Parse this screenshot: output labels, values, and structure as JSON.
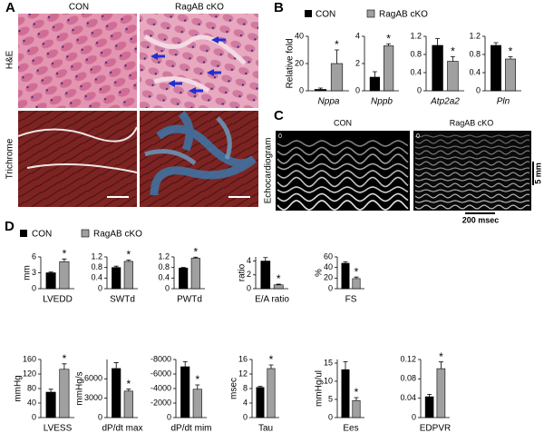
{
  "panel_labels": [
    "A",
    "B",
    "C",
    "D"
  ],
  "panel_a": {
    "columns": [
      "CON",
      "RagAB cKO"
    ],
    "rows": [
      "H&E",
      "Trichrome"
    ]
  },
  "panel_b": {
    "legend": [
      "CON",
      "RagAB cKO"
    ]
  },
  "panel_c": {
    "columns": [
      "CON",
      "RagAB cKO"
    ],
    "ylabel": "Echocardiogram",
    "scale_y": "5 mm",
    "scale_x": "200 msec",
    "image_ticks": [
      "0",
      "0"
    ]
  },
  "panel_d": {
    "legend": [
      "CON",
      "RagAB cKO"
    ]
  },
  "chart_data": [
    {
      "type": "bar",
      "ylabel": "Relative fold",
      "categories": [
        "Nppa"
      ],
      "italic": true,
      "star": "*",
      "ylim": [
        0,
        40
      ],
      "yticks": [
        0,
        20,
        40
      ],
      "series": [
        {
          "color": "#000000",
          "values": [
            1
          ],
          "errors": [
            1
          ]
        },
        {
          "color": "#a0a0a0",
          "values": [
            20
          ],
          "errors": [
            10
          ]
        }
      ]
    },
    {
      "type": "bar",
      "categories": [
        "Nppb"
      ],
      "italic": true,
      "star": "*",
      "ylim": [
        0,
        4
      ],
      "yticks": [
        0,
        2,
        4
      ],
      "series": [
        {
          "color": "#000000",
          "values": [
            1
          ],
          "errors": [
            0.4
          ]
        },
        {
          "color": "#a0a0a0",
          "values": [
            3.3
          ],
          "errors": [
            0.15
          ]
        }
      ]
    },
    {
      "type": "bar",
      "categories": [
        "Atp2a2"
      ],
      "italic": true,
      "star": "*",
      "ylim": [
        0,
        1.2
      ],
      "yticks": [
        0,
        0.4,
        0.8,
        1.2
      ],
      "series": [
        {
          "color": "#000000",
          "values": [
            1.0
          ],
          "errors": [
            0.15
          ]
        },
        {
          "color": "#a0a0a0",
          "values": [
            0.65
          ],
          "errors": [
            0.1
          ]
        }
      ]
    },
    {
      "type": "bar",
      "categories": [
        "Pln"
      ],
      "italic": true,
      "star": "*",
      "ylim": [
        0,
        1.2
      ],
      "yticks": [
        0,
        0.4,
        0.8,
        1.2
      ],
      "series": [
        {
          "color": "#000000",
          "values": [
            1.0
          ],
          "errors": [
            0.06
          ]
        },
        {
          "color": "#a0a0a0",
          "values": [
            0.7
          ],
          "errors": [
            0.05
          ]
        }
      ]
    },
    {
      "type": "bar",
      "ylabel": "mm",
      "categories": [
        "LVEDD"
      ],
      "star": "*",
      "ylim": [
        0,
        6
      ],
      "yticks": [
        0,
        3,
        6
      ],
      "series": [
        {
          "color": "#000000",
          "values": [
            3.0
          ],
          "errors": [
            0.15
          ]
        },
        {
          "color": "#a0a0a0",
          "values": [
            5.1
          ],
          "errors": [
            0.5
          ]
        }
      ]
    },
    {
      "type": "bar",
      "categories": [
        "SWTd"
      ],
      "star": "*",
      "ylim": [
        0,
        1.2
      ],
      "yticks": [
        0,
        0.4,
        0.8,
        1.2
      ],
      "series": [
        {
          "color": "#000000",
          "values": [
            0.8
          ],
          "errors": [
            0.05
          ]
        },
        {
          "color": "#a0a0a0",
          "values": [
            1.03
          ],
          "errors": [
            0.05
          ]
        }
      ]
    },
    {
      "type": "bar",
      "categories": [
        "PWTd"
      ],
      "star": "*",
      "ylim": [
        0,
        1.2
      ],
      "yticks": [
        0,
        0.4,
        0.8,
        1.2
      ],
      "series": [
        {
          "color": "#000000",
          "values": [
            0.78
          ],
          "errors": [
            0.02
          ]
        },
        {
          "color": "#a0a0a0",
          "values": [
            1.15
          ],
          "errors": [
            0.04
          ]
        }
      ]
    },
    {
      "type": "bar",
      "ylabel": "ratio",
      "categories": [
        "E/A ratio"
      ],
      "star": "*",
      "ylim": [
        0,
        4.6
      ],
      "yticks": [
        0,
        2,
        4
      ],
      "series": [
        {
          "color": "#000000",
          "values": [
            4.0
          ],
          "errors": [
            0.5
          ]
        },
        {
          "color": "#a0a0a0",
          "values": [
            0.55
          ],
          "errors": [
            0.1
          ]
        }
      ]
    },
    {
      "type": "bar",
      "ylabel": "%",
      "categories": [
        "FS"
      ],
      "star": "*",
      "ylim": [
        0,
        60
      ],
      "yticks": [
        0,
        20,
        40,
        60
      ],
      "series": [
        {
          "color": "#000000",
          "values": [
            48
          ],
          "errors": [
            3
          ]
        },
        {
          "color": "#a0a0a0",
          "values": [
            19
          ],
          "errors": [
            3
          ]
        }
      ]
    },
    {
      "type": "bar",
      "ylabel": "mmHg",
      "categories": [
        "LVESS"
      ],
      "star": "*",
      "ylim": [
        0,
        160
      ],
      "yticks": [
        0,
        40,
        80,
        120,
        160
      ],
      "series": [
        {
          "color": "#000000",
          "values": [
            70
          ],
          "errors": [
            8
          ]
        },
        {
          "color": "#a0a0a0",
          "values": [
            133
          ],
          "errors": [
            15
          ]
        }
      ]
    },
    {
      "type": "bar",
      "ylabel": "mmHg/s",
      "categories": [
        "dP/dt max"
      ],
      "star": "*",
      "ylim": [
        0,
        9000
      ],
      "yticks": [
        0,
        3000,
        6000
      ],
      "series": [
        {
          "color": "#000000",
          "values": [
            7600
          ],
          "errors": [
            900
          ]
        },
        {
          "color": "#a0a0a0",
          "values": [
            4100
          ],
          "errors": [
            300
          ]
        }
      ]
    },
    {
      "type": "bar",
      "categories": [
        "dP/dt mim"
      ],
      "star": "*",
      "ylim": [
        0,
        -8000
      ],
      "yticks": [
        0,
        -2000,
        -4000,
        -6000,
        -8000
      ],
      "series": [
        {
          "color": "#000000",
          "values": [
            -7000
          ],
          "errors": [
            700
          ]
        },
        {
          "color": "#a0a0a0",
          "values": [
            -3900
          ],
          "errors": [
            600
          ]
        }
      ]
    },
    {
      "type": "bar",
      "ylabel": "msec",
      "categories": [
        "Tau"
      ],
      "star": "*",
      "ylim": [
        0,
        16
      ],
      "yticks": [
        0,
        4,
        8,
        12,
        16
      ],
      "series": [
        {
          "color": "#000000",
          "values": [
            8.3
          ],
          "errors": [
            0.3
          ]
        },
        {
          "color": "#a0a0a0",
          "values": [
            13.5
          ],
          "errors": [
            1
          ]
        }
      ]
    },
    {
      "type": "bar",
      "ylabel": "mmHg/ul",
      "categories": [
        "Ees"
      ],
      "star": "*",
      "ylim": [
        0,
        16
      ],
      "yticks": [
        0,
        5,
        10,
        15
      ],
      "series": [
        {
          "color": "#000000",
          "values": [
            13.2
          ],
          "errors": [
            2.2
          ]
        },
        {
          "color": "#a0a0a0",
          "values": [
            4.7
          ],
          "errors": [
            0.8
          ]
        }
      ]
    },
    {
      "type": "bar",
      "categories": [
        "EDPVR"
      ],
      "star": "*",
      "ylim": [
        0,
        0.12
      ],
      "yticks": [
        0,
        0.04,
        0.08,
        0.12
      ],
      "series": [
        {
          "color": "#000000",
          "values": [
            0.043
          ],
          "errors": [
            0.005
          ]
        },
        {
          "color": "#a0a0a0",
          "values": [
            0.101
          ],
          "errors": [
            0.014
          ]
        }
      ]
    }
  ]
}
